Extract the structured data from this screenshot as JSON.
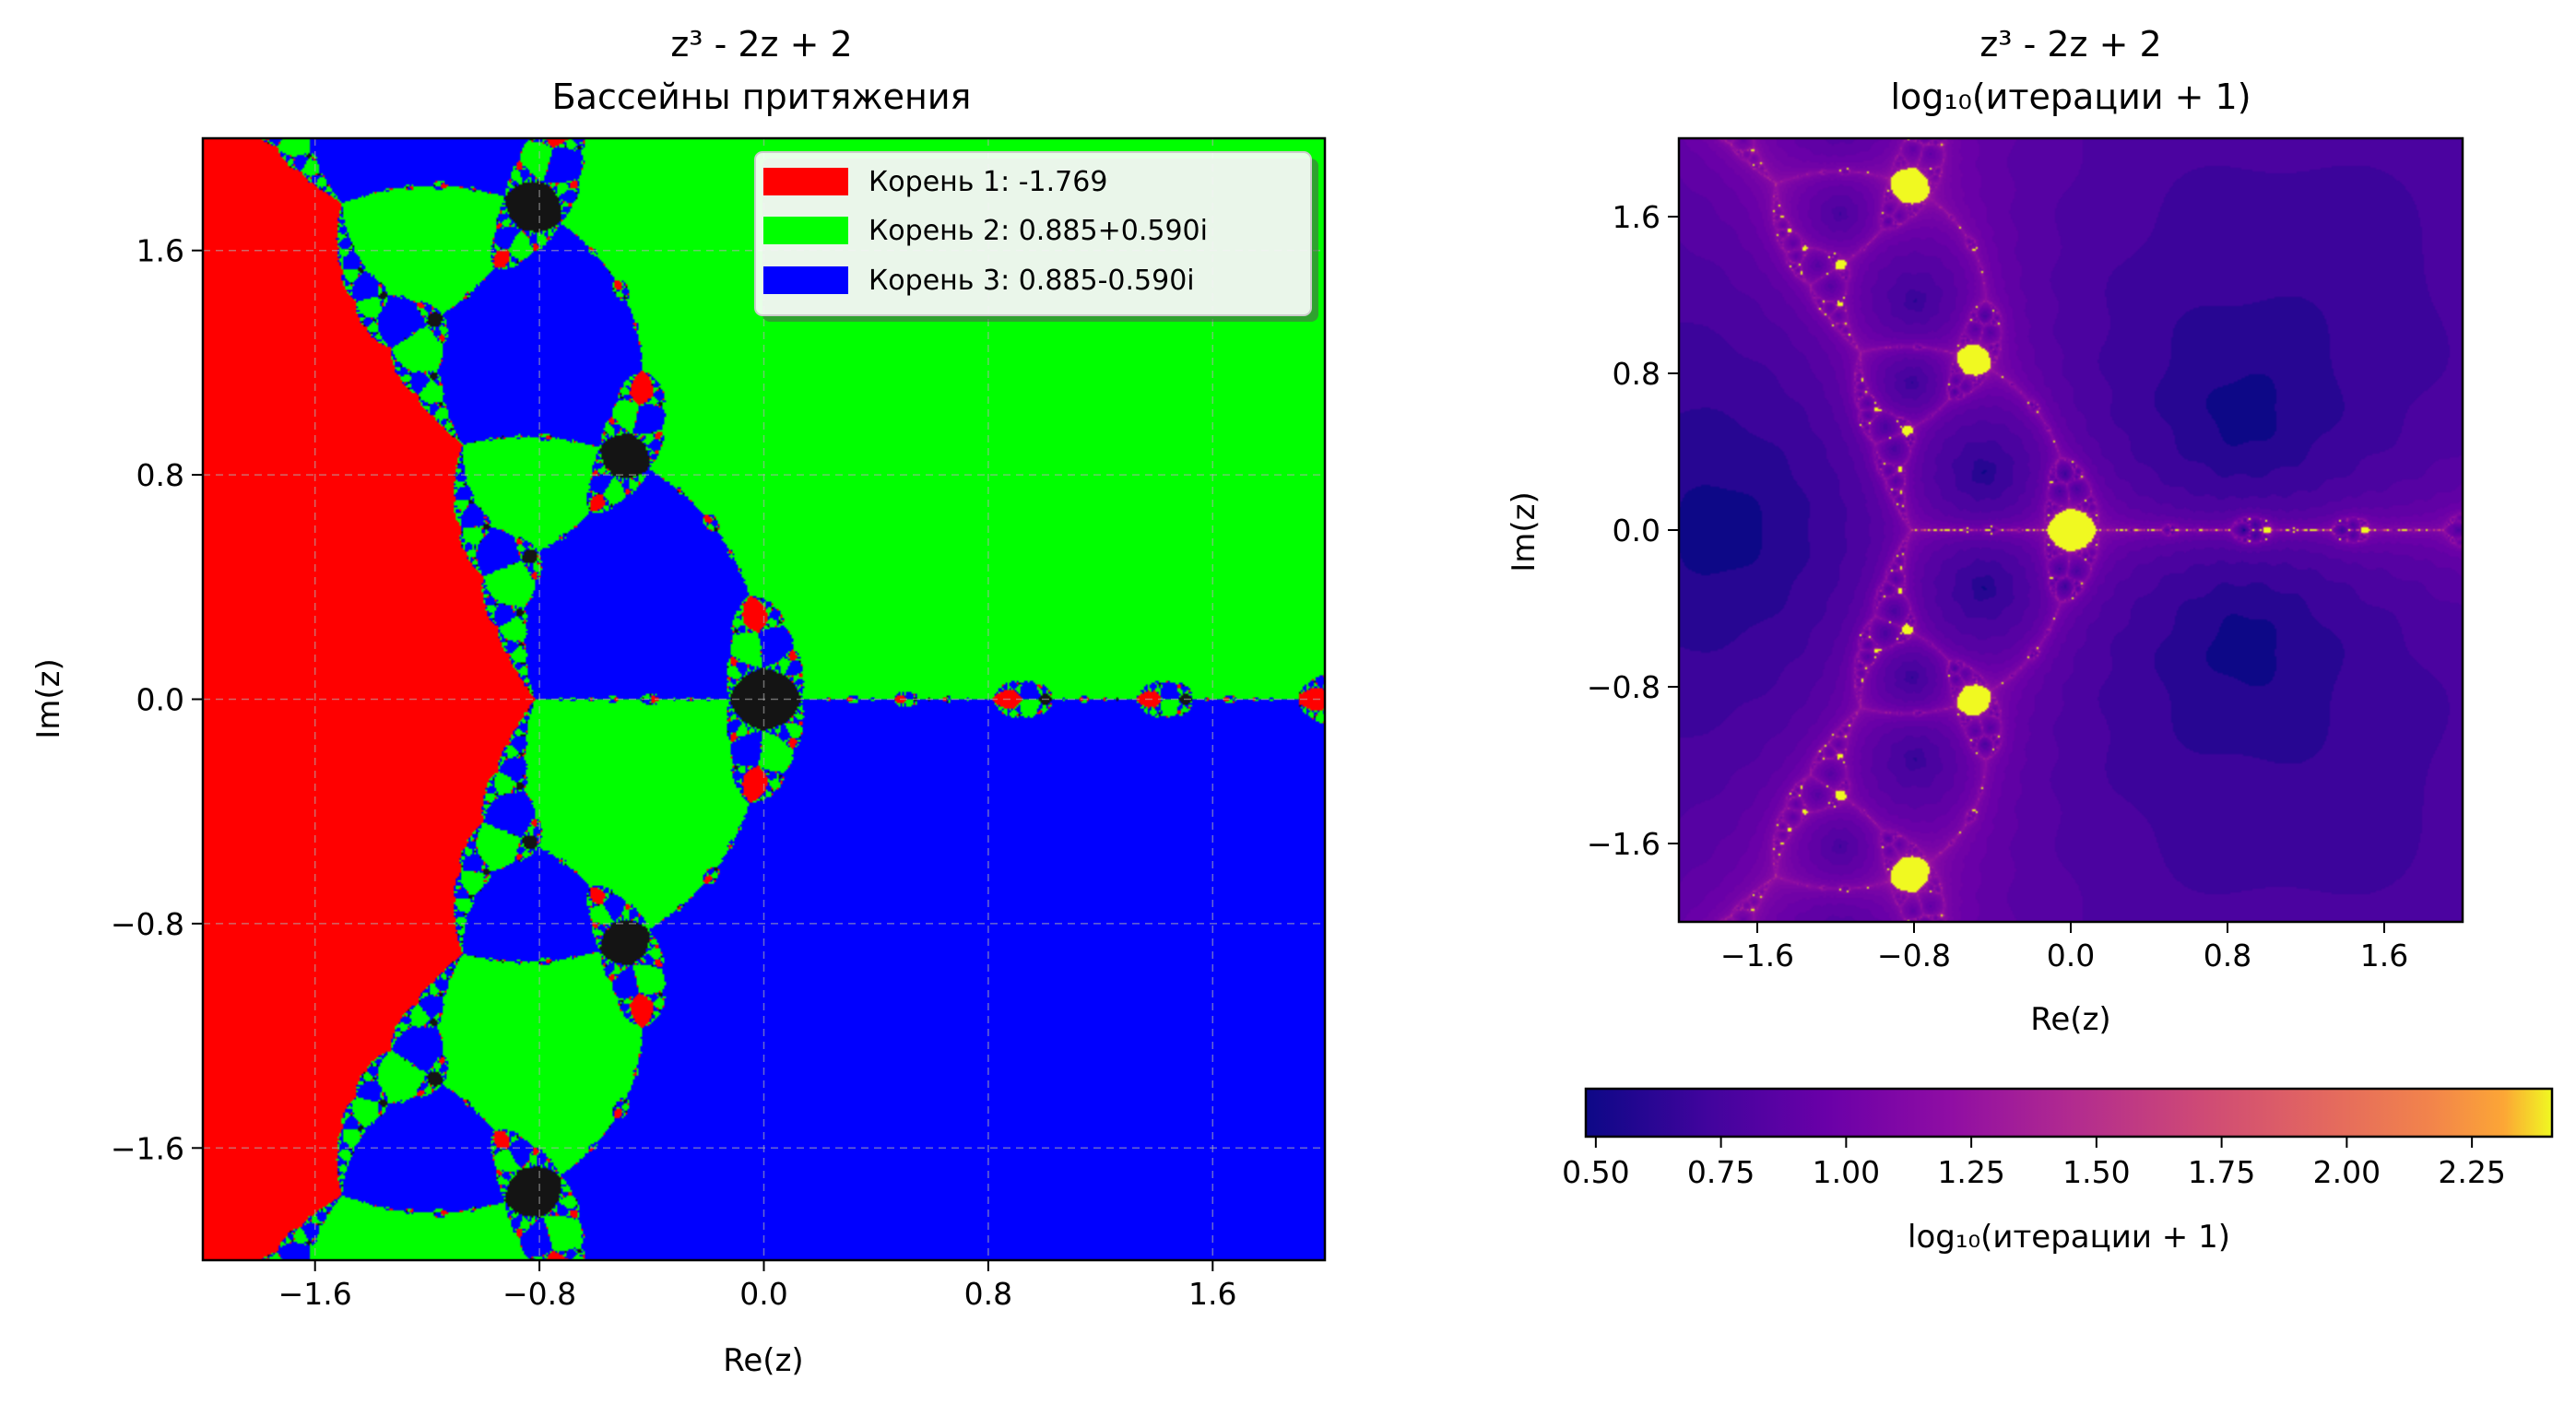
{
  "chart_data": [
    {
      "type": "heatmap",
      "title_line1": "z³ - 2z + 2",
      "title_line2": "Бассейны притяжения",
      "xlabel": "Re(z)",
      "ylabel": "Im(z)",
      "xlim": [
        -2.0,
        2.0
      ],
      "ylim": [
        -2.0,
        2.0
      ],
      "xticks": [
        -1.6,
        -0.8,
        0.0,
        0.8,
        1.6
      ],
      "xtick_labels": [
        "−1.6",
        "−0.8",
        "0.0",
        "0.8",
        "1.6"
      ],
      "yticks": [
        -1.6,
        -0.8,
        0.0,
        0.8,
        1.6
      ],
      "ytick_labels": [
        "−1.6",
        "−0.8",
        "0.0",
        "0.8",
        "1.6"
      ],
      "grid": true,
      "legend_position": "top-right",
      "polynomial_coefficients": [
        1,
        0,
        -2,
        2
      ],
      "roots": [
        {
          "label": "Корень 1: -1.769",
          "re": -1.769,
          "im": 0.0,
          "color": "#ff0000"
        },
        {
          "label": "Корень 2: 0.885+0.590i",
          "re": 0.885,
          "im": 0.59,
          "color": "#00ff00"
        },
        {
          "label": "Корень 3: 0.885-0.590i",
          "re": 0.885,
          "im": -0.59,
          "color": "#0000ff"
        }
      ]
    },
    {
      "type": "heatmap",
      "title_line1": "z³ - 2z + 2",
      "title_line2": "log₁₀(итерации + 1)",
      "xlabel": "Re(z)",
      "ylabel": "Im(z)",
      "xlim": [
        -2.0,
        2.0
      ],
      "ylim": [
        -2.0,
        2.0
      ],
      "xticks": [
        -1.6,
        -0.8,
        0.0,
        0.8,
        1.6
      ],
      "xtick_labels": [
        "−1.6",
        "−0.8",
        "0.0",
        "0.8",
        "1.6"
      ],
      "yticks": [
        -1.6,
        -0.8,
        0.0,
        0.8,
        1.6
      ],
      "ytick_labels": [
        "−1.6",
        "−0.8",
        "0.0",
        "0.8",
        "1.6"
      ],
      "colormap": "plasma",
      "colorbar": {
        "label": "log₁₀(итерации + 1)",
        "range": [
          0.48,
          2.41
        ],
        "ticks": [
          0.5,
          0.75,
          1.0,
          1.25,
          1.5,
          1.75,
          2.0,
          2.25
        ],
        "tick_labels": [
          "0.50",
          "0.75",
          "1.00",
          "1.25",
          "1.50",
          "1.75",
          "2.00",
          "2.25"
        ]
      }
    }
  ]
}
